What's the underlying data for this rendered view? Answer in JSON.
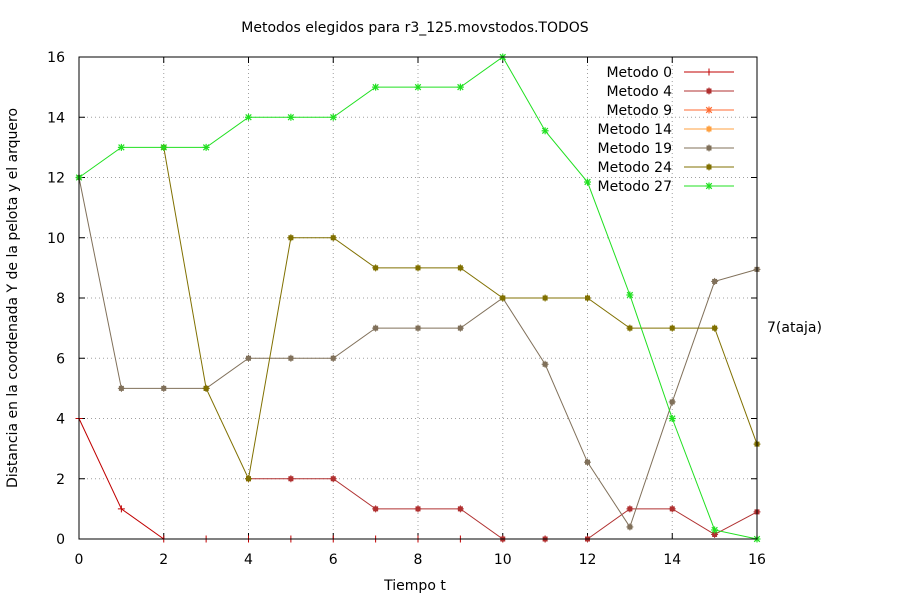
{
  "chart_data": {
    "type": "line",
    "title": "Metodos elegidos para r3_125.movstodos.TODOS",
    "xlabel": "Tiempo t",
    "ylabel": "Distancia en la coordenada Y de la pelota y el arquero",
    "xlim": [
      0,
      16
    ],
    "ylim": [
      0,
      16
    ],
    "xticks": [
      0,
      2,
      4,
      6,
      8,
      10,
      12,
      14,
      16
    ],
    "yticks": [
      0,
      2,
      4,
      6,
      8,
      10,
      12,
      14,
      16
    ],
    "grid": true,
    "legend_position": "top-right",
    "annotation": {
      "text": "7(ataja)",
      "x": 16.2,
      "y": 7
    },
    "series": [
      {
        "name": "Metodo 0",
        "color": "#c00000",
        "marker": "plus",
        "points": [
          [
            0,
            4
          ],
          [
            1,
            1
          ],
          [
            2,
            0
          ],
          [
            3,
            0
          ],
          [
            4,
            0
          ],
          [
            5,
            0
          ],
          [
            6,
            0
          ],
          [
            7,
            0
          ],
          [
            8,
            0
          ],
          [
            9,
            0
          ],
          [
            10,
            0
          ],
          [
            11,
            0
          ],
          [
            12,
            0
          ]
        ]
      },
      {
        "name": "Metodo 4",
        "color": "#b03030",
        "marker": "box",
        "points": [
          [
            4,
            2
          ],
          [
            5,
            2
          ],
          [
            6,
            2
          ],
          [
            7,
            1
          ],
          [
            8,
            1
          ],
          [
            9,
            1
          ],
          [
            10,
            0
          ],
          [
            11,
            0
          ],
          [
            12,
            0
          ],
          [
            13,
            1
          ],
          [
            14,
            1
          ],
          [
            15,
            0.15
          ],
          [
            16,
            0.9
          ]
        ]
      },
      {
        "name": "Metodo 9",
        "color": "#ff6a30",
        "marker": "star",
        "points": []
      },
      {
        "name": "Metodo 14",
        "color": "#ffa040",
        "marker": "box",
        "points": []
      },
      {
        "name": "Metodo 19",
        "color": "#80705a",
        "marker": "box",
        "points": [
          [
            0,
            12
          ],
          [
            1,
            5
          ],
          [
            2,
            5
          ],
          [
            3,
            5
          ],
          [
            4,
            6
          ],
          [
            5,
            6
          ],
          [
            6,
            6
          ],
          [
            7,
            7
          ],
          [
            8,
            7
          ],
          [
            9,
            7
          ],
          [
            10,
            8
          ],
          [
            11,
            5.8
          ],
          [
            12,
            2.55
          ],
          [
            13,
            0.4
          ],
          [
            14,
            4.55
          ],
          [
            15,
            8.55
          ],
          [
            16,
            8.95
          ]
        ]
      },
      {
        "name": "Metodo 24",
        "color": "#807000",
        "marker": "box",
        "points": [
          [
            2,
            13
          ],
          [
            3,
            5
          ],
          [
            4,
            2
          ],
          [
            5,
            10
          ],
          [
            6,
            10
          ],
          [
            7,
            9
          ],
          [
            8,
            9
          ],
          [
            9,
            9
          ],
          [
            10,
            8
          ],
          [
            11,
            8
          ],
          [
            12,
            8
          ],
          [
            13,
            7
          ],
          [
            14,
            7
          ],
          [
            15,
            7
          ],
          [
            16,
            3.15
          ]
        ]
      },
      {
        "name": "Metodo 27",
        "color": "#20e020",
        "marker": "star",
        "points": [
          [
            0,
            12
          ],
          [
            1,
            13
          ],
          [
            2,
            13
          ],
          [
            3,
            13
          ],
          [
            4,
            14
          ],
          [
            5,
            14
          ],
          [
            6,
            14
          ],
          [
            7,
            15
          ],
          [
            8,
            15
          ],
          [
            9,
            15
          ],
          [
            10,
            16
          ],
          [
            11,
            13.55
          ],
          [
            12,
            11.85
          ],
          [
            13,
            8.1
          ],
          [
            14,
            4
          ],
          [
            15,
            0.3
          ],
          [
            16,
            0
          ]
        ]
      }
    ]
  }
}
